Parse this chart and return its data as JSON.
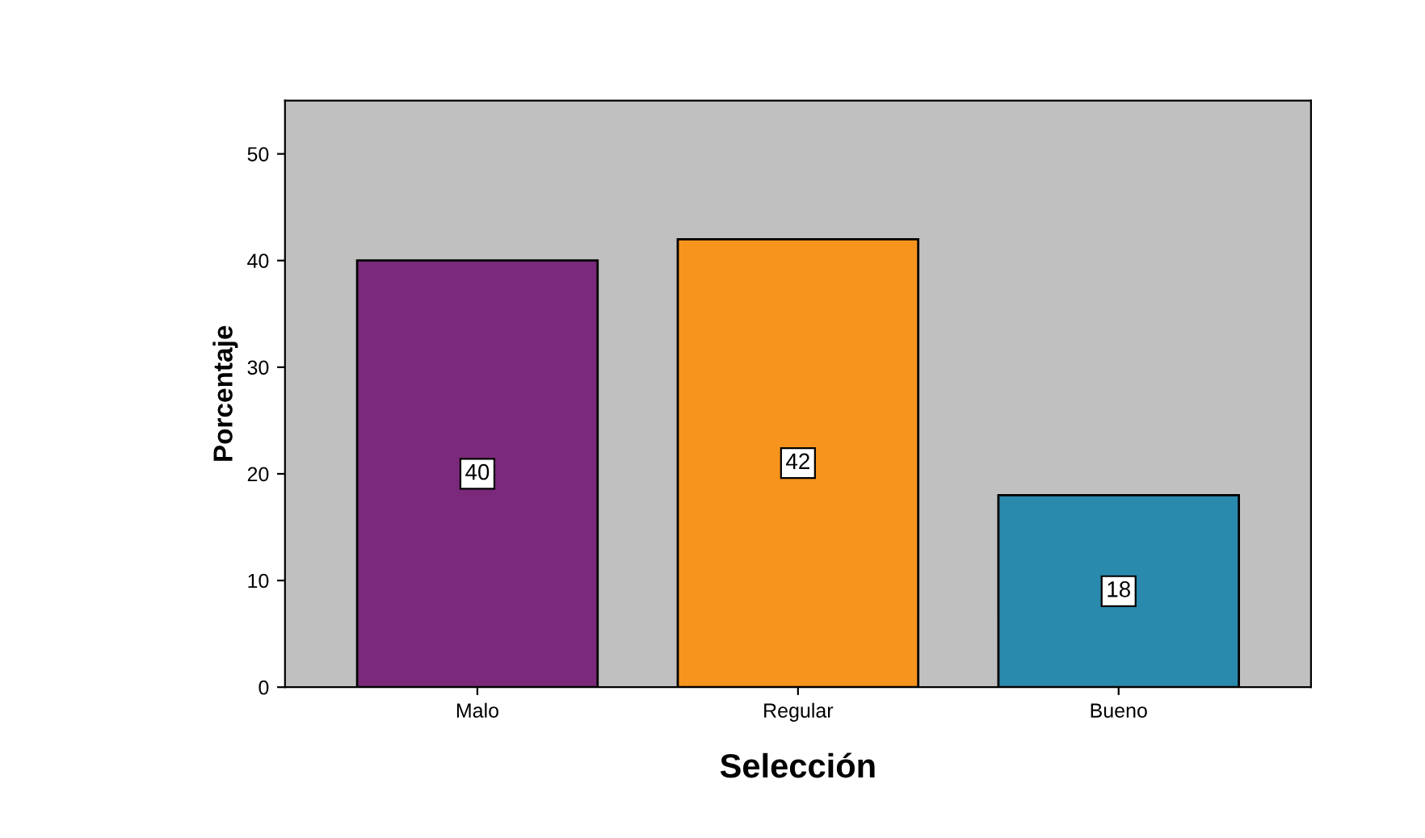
{
  "chart_data": {
    "type": "bar",
    "xlabel": "Selección",
    "ylabel": "Porcentaje",
    "categories": [
      "Malo",
      "Regular",
      "Bueno"
    ],
    "values": [
      40,
      42,
      18
    ],
    "colors": [
      "#7b2a7b",
      "#f7941d",
      "#2a8aad"
    ],
    "ylim": [
      0,
      55
    ],
    "yticks": [
      0,
      10,
      20,
      30,
      40,
      50
    ],
    "data_labels": true,
    "grid": false,
    "legend": false
  }
}
